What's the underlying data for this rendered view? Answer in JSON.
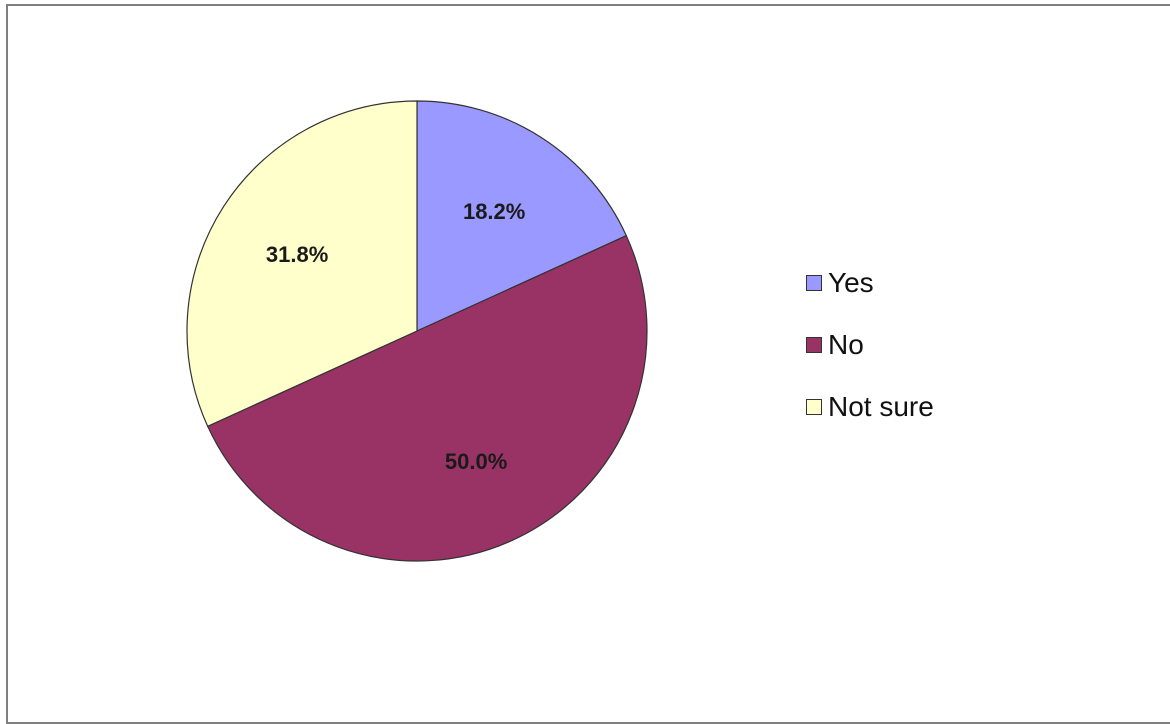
{
  "chart_data": {
    "type": "pie",
    "categories": [
      "Yes",
      "No",
      "Not sure"
    ],
    "values": [
      18.2,
      50.0,
      31.8
    ],
    "labels": [
      "18.2%",
      "50.0%",
      "31.8%"
    ],
    "colors": [
      "#9999ff",
      "#993366",
      "#ffffcc"
    ],
    "legend_position": "right",
    "start_angle": "12 o'clock",
    "direction": "clockwise"
  }
}
